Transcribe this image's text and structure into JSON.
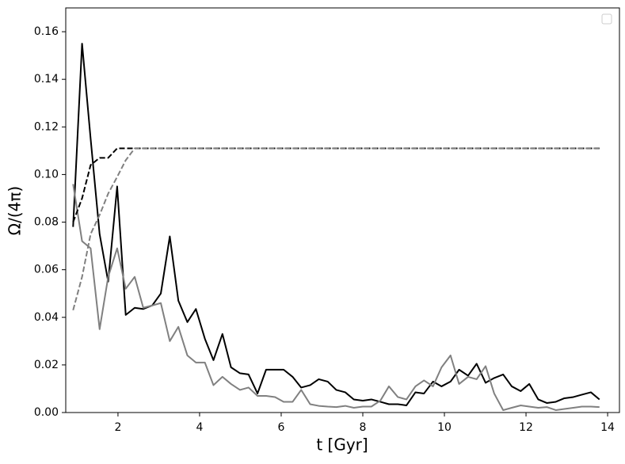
{
  "chart_data": {
    "type": "line",
    "xlabel": "t [Gyr]",
    "ylabel": "Ω/(4π)",
    "x": [
      0.9,
      1.12,
      1.33,
      1.55,
      1.76,
      1.98,
      2.19,
      2.41,
      2.62,
      2.84,
      3.05,
      3.27,
      3.48,
      3.7,
      3.91,
      4.13,
      4.34,
      4.56,
      4.77,
      4.99,
      5.2,
      5.42,
      5.63,
      5.85,
      6.06,
      6.28,
      6.49,
      6.71,
      6.92,
      7.14,
      7.35,
      7.57,
      7.78,
      8.0,
      8.21,
      8.43,
      8.64,
      8.86,
      9.07,
      9.29,
      9.5,
      9.72,
      9.93,
      10.15,
      10.36,
      10.58,
      10.79,
      11.01,
      11.22,
      11.44,
      11.65,
      11.87,
      12.08,
      12.3,
      12.51,
      12.73,
      12.94,
      13.16,
      13.37,
      13.59,
      13.8
    ],
    "series": [
      {
        "color": "#000000",
        "linestyle": "solid",
        "values": [
          0.078,
          0.155,
          0.115,
          0.075,
          0.055,
          0.095,
          0.041,
          0.044,
          0.0435,
          0.045,
          0.05,
          0.074,
          0.047,
          0.038,
          0.0435,
          0.031,
          0.022,
          0.033,
          0.019,
          0.0165,
          0.016,
          0.008,
          0.018,
          0.018,
          0.018,
          0.015,
          0.0105,
          0.0115,
          0.014,
          0.013,
          0.0095,
          0.0085,
          0.0055,
          0.005,
          0.0055,
          0.0045,
          0.0035,
          0.0035,
          0.003,
          0.0085,
          0.008,
          0.013,
          0.011,
          0.013,
          0.018,
          0.0155,
          0.0205,
          0.0125,
          0.0145,
          0.016,
          0.011,
          0.009,
          0.012,
          0.0055,
          0.004,
          0.0045,
          0.006,
          0.0065,
          0.0075,
          0.0085,
          0.0055
        ]
      },
      {
        "color": "#808080",
        "linestyle": "solid",
        "values": [
          0.096,
          0.072,
          0.069,
          0.035,
          0.057,
          0.069,
          0.052,
          0.057,
          0.044,
          0.045,
          0.046,
          0.03,
          0.036,
          0.024,
          0.021,
          0.021,
          0.0115,
          0.015,
          0.012,
          0.0095,
          0.0105,
          0.007,
          0.007,
          0.0065,
          0.0045,
          0.0045,
          0.0095,
          0.0035,
          0.0028,
          0.0025,
          0.0023,
          0.0028,
          0.002,
          0.0025,
          0.0025,
          0.005,
          0.011,
          0.0065,
          0.0055,
          0.011,
          0.0135,
          0.011,
          0.019,
          0.024,
          0.012,
          0.015,
          0.014,
          0.0195,
          0.008,
          0.001,
          0.002,
          0.003,
          0.0025,
          0.002,
          0.0023,
          0.001,
          0.0015,
          0.002,
          0.0025,
          0.0025,
          0.0023
        ]
      },
      {
        "color": "#000000",
        "linestyle": "dashed",
        "values": [
          0.08,
          0.09,
          0.104,
          0.107,
          0.107,
          0.111,
          0.111,
          0.111,
          0.111,
          0.111,
          0.111,
          0.111,
          0.111,
          0.111,
          0.111,
          0.111,
          0.111,
          0.111,
          0.111,
          0.111,
          0.111,
          0.111,
          0.111,
          0.111,
          0.111,
          0.111,
          0.111,
          0.111,
          0.111,
          0.111,
          0.111,
          0.111,
          0.111,
          0.111,
          0.111,
          0.111,
          0.111,
          0.111,
          0.111,
          0.111,
          0.111,
          0.111,
          0.111,
          0.111,
          0.111,
          0.111,
          0.111,
          0.111,
          0.111,
          0.111,
          0.111,
          0.111,
          0.111,
          0.111,
          0.111,
          0.111,
          0.111,
          0.111,
          0.111,
          0.111,
          0.111
        ]
      },
      {
        "color": "#808080",
        "linestyle": "dashed",
        "values": [
          0.043,
          0.057,
          0.075,
          0.083,
          0.092,
          0.099,
          0.106,
          0.111,
          0.111,
          0.111,
          0.111,
          0.111,
          0.111,
          0.111,
          0.111,
          0.111,
          0.111,
          0.111,
          0.111,
          0.111,
          0.111,
          0.111,
          0.111,
          0.111,
          0.111,
          0.111,
          0.111,
          0.111,
          0.111,
          0.111,
          0.111,
          0.111,
          0.111,
          0.111,
          0.111,
          0.111,
          0.111,
          0.111,
          0.111,
          0.111,
          0.111,
          0.111,
          0.111,
          0.111,
          0.111,
          0.111,
          0.111,
          0.111,
          0.111,
          0.111,
          0.111,
          0.111,
          0.111,
          0.111,
          0.111,
          0.111,
          0.111,
          0.111,
          0.111,
          0.111,
          0.111
        ]
      }
    ],
    "xlim": [
      0.72,
      14.29
    ],
    "xticks": [
      2,
      4,
      6,
      8,
      10,
      12,
      14
    ],
    "ylim": [
      0,
      0.17
    ],
    "yticks": [
      {
        "value": 0,
        "label": "0.00"
      },
      {
        "value": 0.02,
        "label": "0.02"
      },
      {
        "value": 0.04,
        "label": "0.04"
      },
      {
        "value": 0.06,
        "label": "0.06"
      },
      {
        "value": 0.08,
        "label": "0.08"
      },
      {
        "value": 0.1,
        "label": "0.10"
      },
      {
        "value": 0.12,
        "label": "0.12"
      },
      {
        "value": 0.14,
        "label": "0.14"
      },
      {
        "value": 0.16,
        "label": "0.16"
      }
    ],
    "grid": false,
    "legend": "upper right"
  }
}
